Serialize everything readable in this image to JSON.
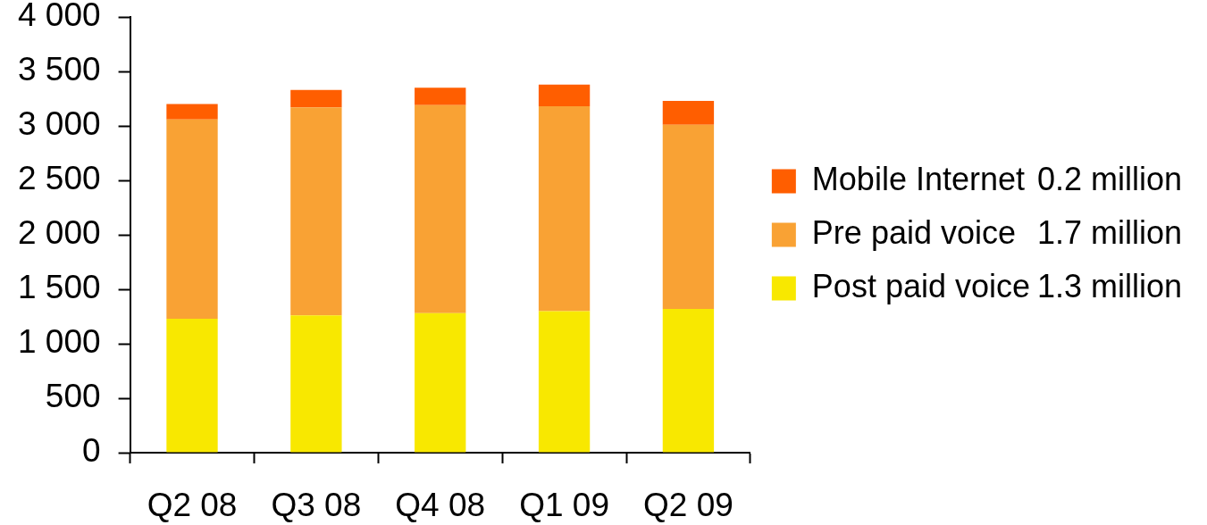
{
  "chart_data": {
    "type": "bar",
    "categories": [
      "Q2 08",
      "Q3 08",
      "Q4 08",
      "Q1 09",
      "Q2 09"
    ],
    "stacked": true,
    "series": [
      {
        "name": "Post paid voice",
        "color": "#f8e800",
        "values": [
          1230,
          1260,
          1280,
          1300,
          1320
        ]
      },
      {
        "name": "Pre paid voice",
        "color": "#f9a234",
        "values": [
          1830,
          1910,
          1910,
          1880,
          1690
        ]
      },
      {
        "name": "Mobile Internet",
        "color": "#ff5e00",
        "values": [
          140,
          160,
          160,
          200,
          220
        ]
      }
    ],
    "ylim": [
      0,
      4000
    ],
    "yticks": [
      0,
      500,
      {
        "value": 1000,
        "label": "1 000"
      },
      {
        "value": 1500,
        "label": "1 500"
      },
      {
        "value": 2000,
        "label": "2 000"
      },
      {
        "value": 2500,
        "label": "2 500"
      },
      {
        "value": 3000,
        "label": "3 000"
      },
      {
        "value": 3500,
        "label": "3 500"
      },
      {
        "value": 4000,
        "label": "4 000"
      }
    ],
    "grid": false,
    "legend": "right",
    "annotations": [
      "0.2 million",
      "1.7 million",
      "1.3 million"
    ]
  }
}
